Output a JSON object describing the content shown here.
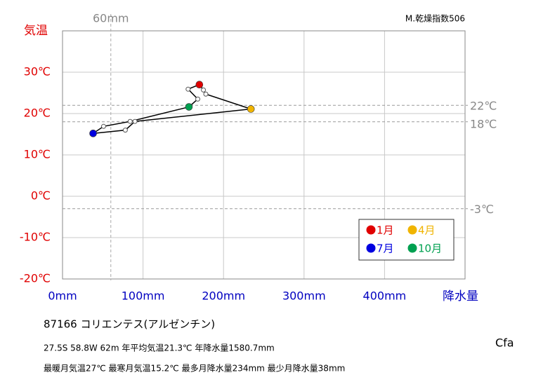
{
  "chart_data": {
    "type": "climograph",
    "y_label": "気温",
    "x_label": "降水量",
    "corner_note": "M.乾燥指数506",
    "x": [
      170,
      175,
      178,
      234,
      90,
      78,
      38,
      51,
      84,
      157,
      168,
      156
    ],
    "values": [
      27,
      25.7,
      24.7,
      21.1,
      18.1,
      16.0,
      15.2,
      16.9,
      18.1,
      21.6,
      23.5,
      25.9
    ],
    "line_color": "#000000",
    "series": [
      {
        "name": "1月",
        "color": "#e00000",
        "x": [
          170
        ],
        "values": [
          27
        ]
      },
      {
        "name": "4月",
        "color": "#f0b400",
        "x": [
          234
        ],
        "values": [
          21.1
        ]
      },
      {
        "name": "7月",
        "color": "#0000e0",
        "x": [
          38
        ],
        "values": [
          15.2
        ]
      },
      {
        "name": "10月",
        "color": "#00a050",
        "x": [
          157
        ],
        "values": [
          21.6
        ]
      }
    ],
    "xlim": [
      0,
      500
    ],
    "ylim": [
      -20,
      40
    ],
    "xticks": [
      {
        "value": 0,
        "label": "0mm"
      },
      {
        "value": 100,
        "label": "100mm"
      },
      {
        "value": 200,
        "label": "200mm"
      },
      {
        "value": 300,
        "label": "300mm"
      },
      {
        "value": 400,
        "label": "400mm"
      }
    ],
    "yticks": [
      {
        "value": -20,
        "label": "-20℃"
      },
      {
        "value": -10,
        "label": "-10℃"
      },
      {
        "value": 0,
        "label": "0℃"
      },
      {
        "value": 10,
        "label": "10℃"
      },
      {
        "value": 20,
        "label": "20℃"
      },
      {
        "value": 30,
        "label": "30℃"
      }
    ],
    "ref_x": [
      {
        "value": 60,
        "label": "60mm"
      }
    ],
    "ref_y": [
      {
        "value": 22,
        "label": "22℃"
      },
      {
        "value": 18,
        "label": "18℃"
      },
      {
        "value": -3,
        "label": "-3℃"
      }
    ],
    "grid": true
  },
  "info": {
    "station": "87166  コリエンテス(アルゼンチン)",
    "line1": "27.5S  58.8W 62m  年平均気温21.3℃ 年降水量1580.7mm",
    "line2": "最暖月気温27℃ 最寒月気温15.2℃ 最多月降水量234mm 最少月降水量38mm",
    "climate": "Cfa"
  }
}
